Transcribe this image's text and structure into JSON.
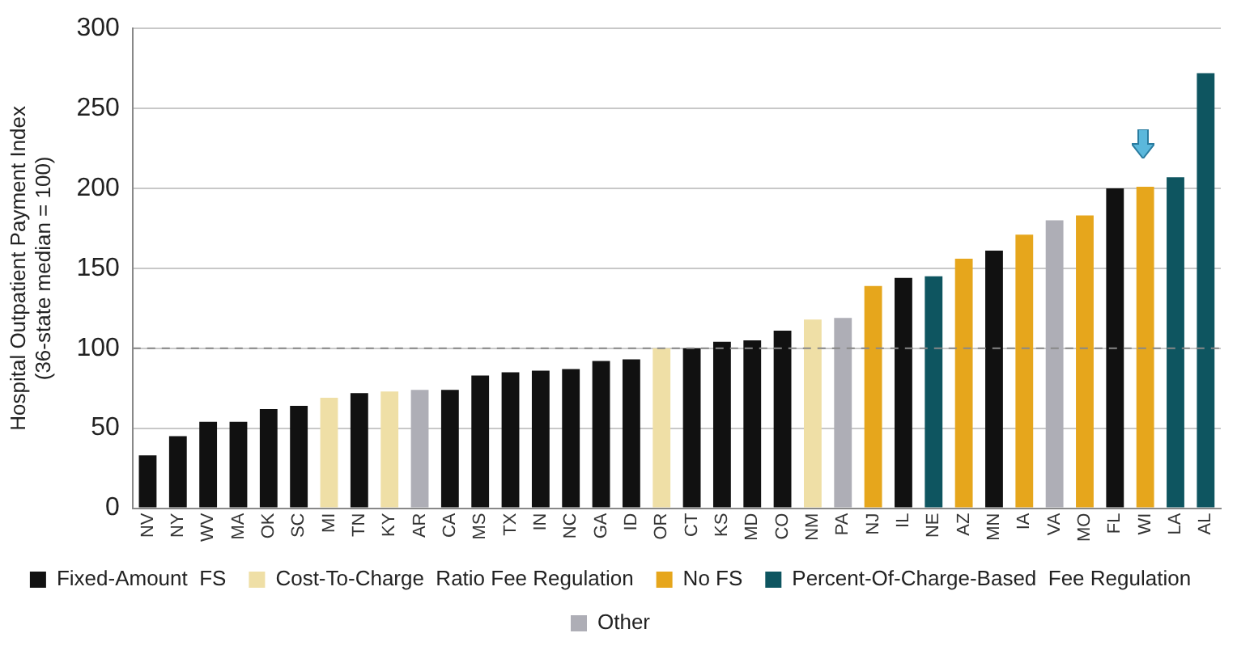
{
  "chart_data": {
    "type": "bar",
    "ylabel": "Hospital Outpatient Payment Index\n(36-state median = 100)",
    "categories": [
      "NV",
      "NY",
      "WV",
      "MA",
      "OK",
      "SC",
      "MI",
      "TN",
      "KY",
      "AR",
      "CA",
      "MS",
      "TX",
      "IN",
      "NC",
      "GA",
      "ID",
      "OR",
      "CT",
      "KS",
      "MD",
      "CO",
      "NM",
      "PA",
      "NJ",
      "IL",
      "NE",
      "AZ",
      "MN",
      "IA",
      "VA",
      "MO",
      "FL",
      "WI",
      "LA",
      "AL"
    ],
    "stacked": true,
    "series": [
      {
        "name": "Fixed-Amount  FS",
        "color": "#111111",
        "values": [
          33,
          45,
          54,
          54,
          62,
          64,
          null,
          72,
          null,
          null,
          74,
          83,
          85,
          86,
          87,
          92,
          93,
          null,
          100,
          104,
          105,
          111,
          null,
          null,
          null,
          144,
          null,
          null,
          161,
          null,
          null,
          null,
          200,
          null,
          null,
          null
        ]
      },
      {
        "name": "Cost-To-Charge  Ratio Fee Regulation",
        "color": "#efdfa6",
        "values": [
          null,
          null,
          null,
          null,
          null,
          null,
          69,
          null,
          73,
          null,
          null,
          null,
          null,
          null,
          null,
          null,
          null,
          100,
          null,
          null,
          null,
          null,
          118,
          null,
          null,
          null,
          null,
          null,
          null,
          null,
          null,
          null,
          null,
          null,
          null,
          null
        ]
      },
      {
        "name": "No FS",
        "color": "#e6a61c",
        "values": [
          null,
          null,
          null,
          null,
          null,
          null,
          null,
          null,
          null,
          null,
          null,
          null,
          null,
          null,
          null,
          null,
          null,
          null,
          null,
          null,
          null,
          null,
          null,
          null,
          139,
          null,
          null,
          156,
          null,
          171,
          null,
          183,
          null,
          201,
          null,
          null
        ]
      },
      {
        "name": "Percent-Of-Charge-Based  Fee Regulation",
        "color": "#0e5560",
        "values": [
          null,
          null,
          null,
          null,
          null,
          null,
          null,
          null,
          null,
          null,
          null,
          null,
          null,
          null,
          null,
          null,
          null,
          null,
          null,
          null,
          null,
          null,
          null,
          null,
          null,
          null,
          145,
          null,
          null,
          null,
          null,
          null,
          null,
          null,
          207,
          272
        ]
      },
      {
        "name": "Other",
        "color": "#aeaeb6",
        "values": [
          null,
          null,
          null,
          null,
          null,
          null,
          null,
          null,
          null,
          74,
          null,
          null,
          null,
          null,
          null,
          null,
          null,
          null,
          null,
          null,
          null,
          null,
          null,
          119,
          null,
          null,
          null,
          null,
          null,
          null,
          180,
          null,
          null,
          null,
          null,
          null
        ]
      }
    ],
    "ylim": [
      0,
      300
    ],
    "yticks": [
      0,
      50,
      100,
      150,
      200,
      250,
      300
    ],
    "grid": "y",
    "legend": "bottom",
    "ref_lines": [
      {
        "axis": "y",
        "value": 100,
        "line_style": "dashed",
        "color": "#888888"
      }
    ]
  }
}
